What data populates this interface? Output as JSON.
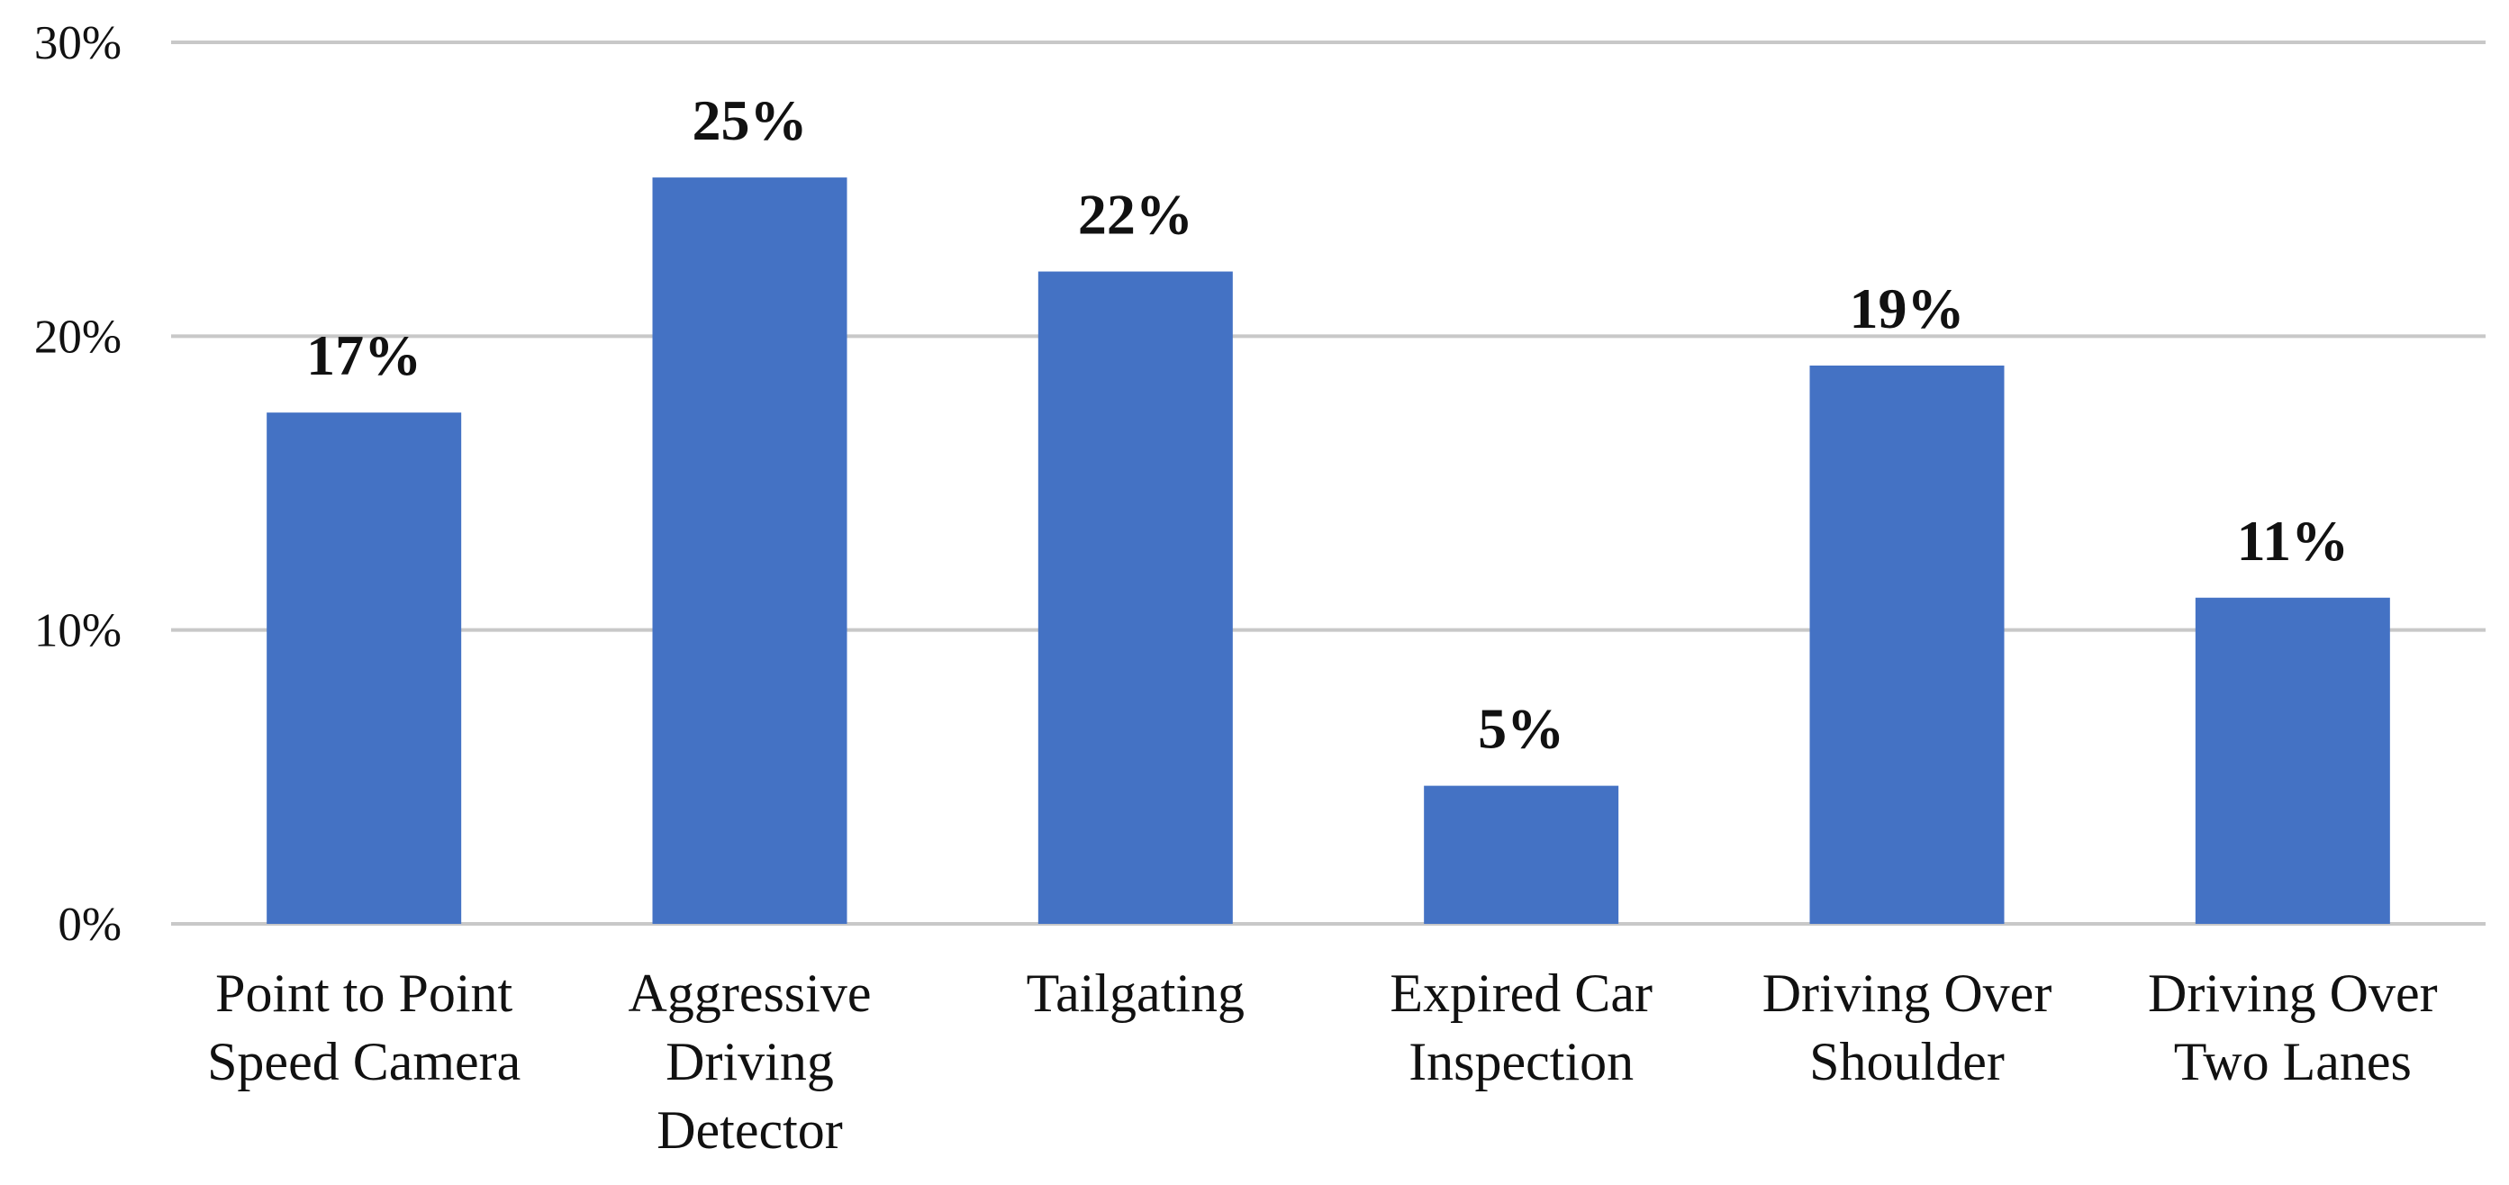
{
  "chart_data": {
    "type": "bar",
    "title": "",
    "xlabel": "",
    "ylabel": "",
    "categories": [
      [
        "Point to Point",
        "Speed Camera"
      ],
      [
        "Aggressive",
        "Driving",
        "Detector"
      ],
      [
        "Tailgating"
      ],
      [
        "Expired Car",
        "Inspection"
      ],
      [
        "Driving Over",
        "Shoulder"
      ],
      [
        "Driving Over",
        "Two Lanes"
      ]
    ],
    "values": [
      17.4,
      25.4,
      22.2,
      4.7,
      19.0,
      11.1
    ],
    "data_labels": [
      "17%",
      "25%",
      "22%",
      "5%",
      "19%",
      "11%"
    ],
    "ylim": [
      0,
      30
    ],
    "yticks": [
      0,
      10,
      20,
      30
    ],
    "ytick_labels": [
      "0%",
      "10%",
      "20%",
      "30%"
    ],
    "grid": true,
    "bar_color": "#4472C4",
    "grid_color": "#C8C8C8",
    "text_color": "#111111"
  }
}
